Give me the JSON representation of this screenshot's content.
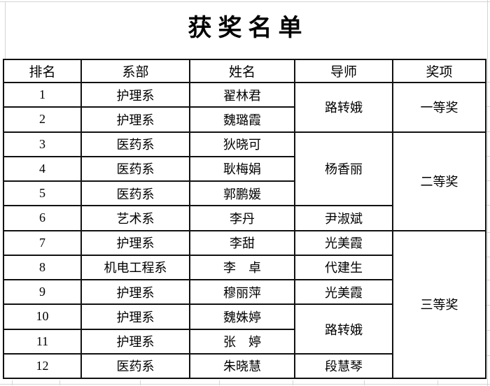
{
  "title": "获奖名单",
  "table": {
    "headers": [
      "排名",
      "系部",
      "姓名",
      "导师",
      "奖项"
    ],
    "rows": [
      {
        "rank": "1",
        "dept": "护理系",
        "name": "翟林君",
        "mentor": "路转娥",
        "mentor_span": 2,
        "award": "一等奖",
        "award_span": 2
      },
      {
        "rank": "2",
        "dept": "护理系",
        "name": "魏璐霞"
      },
      {
        "rank": "3",
        "dept": "医药系",
        "name": "狄晓可",
        "mentor": "杨香丽",
        "mentor_span": 3,
        "award": "二等奖",
        "award_span": 4
      },
      {
        "rank": "4",
        "dept": "医药系",
        "name": "耿梅娟"
      },
      {
        "rank": "5",
        "dept": "医药系",
        "name": "郭鹏媛"
      },
      {
        "rank": "6",
        "dept": "艺术系",
        "name": "李丹",
        "mentor": "尹淑斌",
        "mentor_span": 1
      },
      {
        "rank": "7",
        "dept": "护理系",
        "name": "李甜",
        "mentor": "光美霞",
        "mentor_span": 1,
        "award": "三等奖",
        "award_span": 6
      },
      {
        "rank": "8",
        "dept": "机电工程系",
        "name": "李　卓",
        "mentor": "代建生",
        "mentor_span": 1
      },
      {
        "rank": "9",
        "dept": "护理系",
        "name": "穆丽萍",
        "mentor": "光美霞",
        "mentor_span": 1
      },
      {
        "rank": "10",
        "dept": "护理系",
        "name": "魏姝婷",
        "mentor": "路转娥",
        "mentor_span": 2
      },
      {
        "rank": "11",
        "dept": "护理系",
        "name": "张　婷"
      },
      {
        "rank": "12",
        "dept": "医药系",
        "name": "朱晓慧",
        "mentor": "段慧琴",
        "mentor_span": 1
      }
    ]
  }
}
